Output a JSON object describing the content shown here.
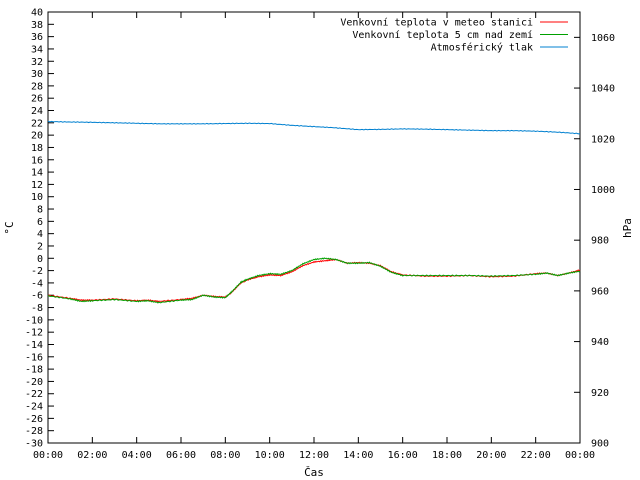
{
  "chart_data": {
    "type": "line",
    "xlabel": "Čas",
    "ylabel_left": "°C",
    "ylabel_right": "hPa",
    "x_ticks": [
      "00:00",
      "02:00",
      "04:00",
      "06:00",
      "08:00",
      "10:00",
      "12:00",
      "14:00",
      "16:00",
      "18:00",
      "20:00",
      "22:00",
      "00:00"
    ],
    "x_range_hours": [
      0,
      24
    ],
    "y_left_range": [
      -30,
      40
    ],
    "y_left_ticks": [
      -30,
      -28,
      -26,
      -24,
      -22,
      -20,
      -18,
      -16,
      -14,
      -12,
      -10,
      -8,
      -6,
      -4,
      -2,
      0,
      2,
      4,
      6,
      8,
      10,
      12,
      14,
      16,
      18,
      20,
      22,
      24,
      26,
      28,
      30,
      32,
      34,
      36,
      38,
      40
    ],
    "y_right_range": [
      900,
      1070
    ],
    "y_right_ticks": [
      900,
      920,
      940,
      960,
      980,
      1000,
      1020,
      1040,
      1060
    ],
    "legend_position": "top-right",
    "series": [
      {
        "name": "Venkovní teplota v meteo stanici",
        "color": "#ff0000",
        "axis": "left",
        "x": [
          0,
          1,
          1.5,
          2,
          3,
          4,
          4.5,
          5,
          6,
          6.5,
          7,
          7.5,
          8,
          8.3,
          8.7,
          9,
          9.5,
          10,
          10.5,
          11,
          11.5,
          12,
          12.5,
          13,
          13.5,
          14,
          14.5,
          15,
          15.5,
          16,
          17,
          18,
          19,
          20,
          21,
          22,
          22.5,
          23,
          23.5,
          24
        ],
        "values": [
          -6.0,
          -6.5,
          -6.8,
          -6.8,
          -6.6,
          -6.9,
          -6.8,
          -7.0,
          -6.7,
          -6.5,
          -6.0,
          -6.2,
          -6.3,
          -5.5,
          -4.0,
          -3.5,
          -3.0,
          -2.7,
          -2.8,
          -2.2,
          -1.2,
          -0.6,
          -0.4,
          -0.2,
          -0.8,
          -0.7,
          -0.8,
          -1.2,
          -2.2,
          -2.7,
          -2.9,
          -2.9,
          -2.8,
          -3.0,
          -2.9,
          -2.5,
          -2.4,
          -2.8,
          -2.4,
          -1.9
        ]
      },
      {
        "name": "Venkovní teplota 5 cm nad zemí",
        "color": "#00a000",
        "axis": "left",
        "x": [
          0,
          1,
          1.5,
          2,
          3,
          4,
          4.5,
          5,
          6,
          6.5,
          7,
          7.5,
          8,
          8.3,
          8.7,
          9,
          9.5,
          10,
          10.5,
          11,
          11.5,
          12,
          12.5,
          13,
          13.5,
          14,
          14.5,
          15,
          15.5,
          16,
          17,
          18,
          19,
          20,
          21,
          22,
          22.5,
          23,
          23.5,
          24
        ],
        "values": [
          -6.1,
          -6.6,
          -7.0,
          -6.9,
          -6.7,
          -7.0,
          -6.9,
          -7.2,
          -6.8,
          -6.7,
          -6.0,
          -6.3,
          -6.4,
          -5.4,
          -3.9,
          -3.4,
          -2.8,
          -2.5,
          -2.6,
          -2.0,
          -0.9,
          -0.2,
          0.0,
          -0.2,
          -0.8,
          -0.8,
          -0.7,
          -1.3,
          -2.3,
          -2.8,
          -2.8,
          -2.8,
          -2.8,
          -2.9,
          -2.8,
          -2.6,
          -2.4,
          -2.8,
          -2.4,
          -2.1
        ]
      },
      {
        "name": "Atmosférický tlak",
        "color": "#0080d0",
        "axis": "right",
        "x": [
          0,
          1,
          2,
          3,
          4,
          5,
          6,
          7,
          8,
          9,
          10,
          11,
          12,
          13,
          14,
          15,
          16,
          17,
          18,
          19,
          20,
          21,
          22,
          23,
          24
        ],
        "values": [
          1026.8,
          1026.6,
          1026.5,
          1026.3,
          1026.1,
          1025.9,
          1025.9,
          1025.9,
          1026.0,
          1026.1,
          1026.0,
          1025.3,
          1024.8,
          1024.3,
          1023.6,
          1023.7,
          1023.9,
          1023.8,
          1023.6,
          1023.4,
          1023.2,
          1023.2,
          1023.0,
          1022.6,
          1022.0
        ]
      }
    ]
  }
}
